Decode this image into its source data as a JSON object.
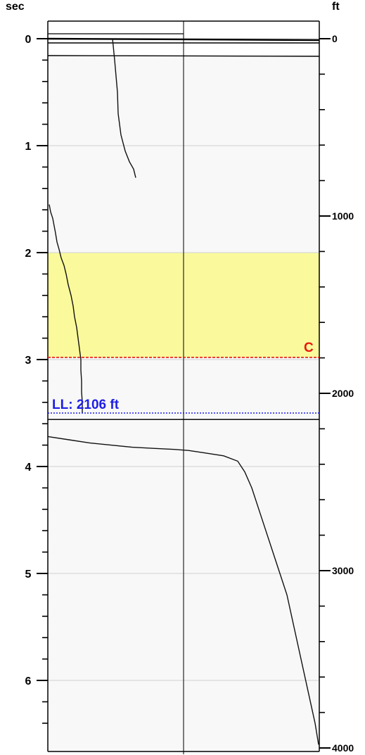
{
  "chart_data": {
    "type": "line",
    "title": "",
    "left_axis_unit": "sec",
    "right_axis_unit": "ft",
    "left_axis_ticks": [
      "0",
      "1",
      "2",
      "3",
      "4",
      "5",
      "6"
    ],
    "right_axis_ticks": [
      "0",
      "1000",
      "2000",
      "3000",
      "4000"
    ],
    "left_ylim": [
      -0.2,
      6.6
    ],
    "right_ylim": [
      0,
      4000
    ],
    "grid": true,
    "highlight_band": {
      "from_sec": 2.0,
      "to_sec": 2.98,
      "color": "#fafa9c"
    },
    "annotations": [
      {
        "id": "c-line",
        "label": "C",
        "sec": 2.98,
        "color": "#e8190f",
        "style": "dashed"
      },
      {
        "id": "ll-line",
        "label": "LL: 2106 ft",
        "sec": 3.5,
        "color": "#1e1ee6",
        "style": "dotted"
      }
    ],
    "panel_split_sec": 3.56,
    "series": [
      {
        "points": [
          [
            0.92,
            0.0
          ],
          [
            0.95,
            0.2
          ],
          [
            0.99,
            0.5
          ],
          [
            1.0,
            0.7
          ],
          [
            1.04,
            0.9
          ],
          [
            1.1,
            1.05
          ],
          [
            1.16,
            1.15
          ],
          [
            1.22,
            1.22
          ],
          [
            1.25,
            1.3
          ]
        ]
      },
      {
        "points": [
          [
            0.02,
            1.55
          ],
          [
            0.04,
            1.62
          ],
          [
            0.07,
            1.68
          ],
          [
            0.09,
            1.75
          ],
          [
            0.11,
            1.82
          ],
          [
            0.13,
            1.9
          ],
          [
            0.16,
            1.97
          ],
          [
            0.19,
            2.05
          ],
          [
            0.23,
            2.12
          ],
          [
            0.26,
            2.2
          ],
          [
            0.29,
            2.3
          ],
          [
            0.33,
            2.4
          ],
          [
            0.36,
            2.5
          ],
          [
            0.38,
            2.6
          ],
          [
            0.41,
            2.7
          ],
          [
            0.43,
            2.8
          ],
          [
            0.45,
            2.9
          ],
          [
            0.47,
            3.0
          ],
          [
            0.47,
            3.1
          ],
          [
            0.48,
            3.2
          ],
          [
            0.48,
            3.3
          ],
          [
            0.49,
            3.4
          ],
          [
            0.49,
            3.5
          ]
        ]
      },
      {
        "points": [
          [
            0.0,
            3.72
          ],
          [
            0.3,
            3.75
          ],
          [
            0.6,
            3.78
          ],
          [
            0.9,
            3.8
          ],
          [
            1.2,
            3.82
          ],
          [
            1.5,
            3.83
          ],
          [
            1.8,
            3.84
          ],
          [
            2.0,
            3.85
          ],
          [
            2.2,
            3.87
          ],
          [
            2.5,
            3.9
          ],
          [
            2.7,
            3.95
          ],
          [
            2.8,
            4.05
          ],
          [
            2.9,
            4.2
          ],
          [
            3.0,
            4.4
          ],
          [
            3.1,
            4.6
          ],
          [
            3.2,
            4.8
          ],
          [
            3.3,
            5.0
          ],
          [
            3.4,
            5.2
          ],
          [
            3.5,
            5.5
          ],
          [
            3.6,
            5.8
          ],
          [
            3.7,
            6.1
          ],
          [
            3.8,
            6.4
          ],
          [
            3.85,
            6.6
          ]
        ]
      }
    ]
  }
}
